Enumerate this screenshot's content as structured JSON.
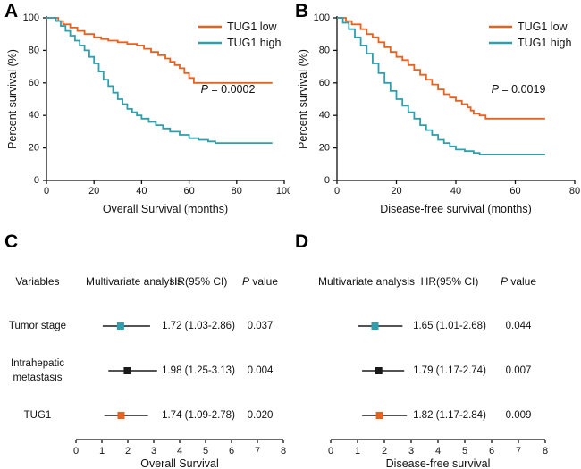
{
  "colors": {
    "tug1_low": "#E9611E",
    "tug1_high": "#2E9FAD",
    "black": "#1A1A1A",
    "axis": "#111111"
  },
  "chart_data": [
    {
      "id": "A",
      "type": "line",
      "subtype": "kaplan-meier-step",
      "xlabel": "Overall Survival (months)",
      "ylabel": "Percent survival (%)",
      "xlim": [
        0,
        100
      ],
      "ylim": [
        0,
        100
      ],
      "xticks": [
        0,
        20,
        40,
        60,
        80,
        100
      ],
      "yticks": [
        0,
        20,
        40,
        60,
        80,
        100
      ],
      "pvalue": "P = 0.0002",
      "legend_position": "top-right",
      "series": [
        {
          "name": "TUG1 low",
          "color": "#E9611E",
          "steps": [
            [
              0,
              100
            ],
            [
              5,
              98
            ],
            [
              7,
              96
            ],
            [
              10,
              94
            ],
            [
              13,
              92
            ],
            [
              16,
              90
            ],
            [
              20,
              88
            ],
            [
              23,
              87
            ],
            [
              26,
              86
            ],
            [
              30,
              85
            ],
            [
              34,
              84
            ],
            [
              38,
              83
            ],
            [
              41,
              81
            ],
            [
              44,
              79
            ],
            [
              47,
              77
            ],
            [
              50,
              75
            ],
            [
              52,
              73
            ],
            [
              54,
              71
            ],
            [
              56,
              69
            ],
            [
              58,
              66
            ],
            [
              60,
              63
            ],
            [
              62,
              60
            ],
            [
              95,
              60
            ]
          ]
        },
        {
          "name": "TUG1 high",
          "color": "#2E9FAD",
          "steps": [
            [
              0,
              100
            ],
            [
              4,
              98
            ],
            [
              6,
              95
            ],
            [
              8,
              92
            ],
            [
              10,
              89
            ],
            [
              12,
              86
            ],
            [
              14,
              83
            ],
            [
              16,
              80
            ],
            [
              18,
              76
            ],
            [
              20,
              72
            ],
            [
              22,
              67
            ],
            [
              24,
              62
            ],
            [
              26,
              58
            ],
            [
              28,
              54
            ],
            [
              30,
              50
            ],
            [
              32,
              47
            ],
            [
              34,
              44
            ],
            [
              36,
              42
            ],
            [
              38,
              40
            ],
            [
              40,
              38
            ],
            [
              43,
              36
            ],
            [
              46,
              34
            ],
            [
              49,
              32
            ],
            [
              52,
              30
            ],
            [
              56,
              28
            ],
            [
              60,
              26
            ],
            [
              64,
              25
            ],
            [
              68,
              24
            ],
            [
              71,
              23
            ],
            [
              95,
              23
            ]
          ]
        }
      ]
    },
    {
      "id": "B",
      "type": "line",
      "subtype": "kaplan-meier-step",
      "xlabel": "Disease-free survival (months)",
      "ylabel": "Percent survival (%)",
      "xlim": [
        0,
        80
      ],
      "ylim": [
        0,
        100
      ],
      "xticks": [
        0,
        20,
        40,
        60,
        80
      ],
      "yticks": [
        0,
        20,
        40,
        60,
        80,
        100
      ],
      "pvalue": "P = 0.0019",
      "legend_position": "top-right",
      "series": [
        {
          "name": "TUG1 low",
          "color": "#E9611E",
          "steps": [
            [
              0,
              100
            ],
            [
              3,
              98
            ],
            [
              5,
              96
            ],
            [
              8,
              93
            ],
            [
              10,
              90
            ],
            [
              12,
              88
            ],
            [
              14,
              85
            ],
            [
              16,
              82
            ],
            [
              18,
              79
            ],
            [
              20,
              76
            ],
            [
              22,
              74
            ],
            [
              24,
              71
            ],
            [
              26,
              68
            ],
            [
              28,
              65
            ],
            [
              30,
              62
            ],
            [
              32,
              59
            ],
            [
              34,
              56
            ],
            [
              36,
              53
            ],
            [
              38,
              51
            ],
            [
              40,
              49
            ],
            [
              42,
              47
            ],
            [
              44,
              45
            ],
            [
              45,
              43
            ],
            [
              46,
              41
            ],
            [
              48,
              40
            ],
            [
              50,
              38
            ],
            [
              70,
              38
            ]
          ]
        },
        {
          "name": "TUG1 high",
          "color": "#2E9FAD",
          "steps": [
            [
              0,
              100
            ],
            [
              2,
              97
            ],
            [
              4,
              93
            ],
            [
              6,
              88
            ],
            [
              8,
              83
            ],
            [
              10,
              78
            ],
            [
              12,
              72
            ],
            [
              14,
              66
            ],
            [
              16,
              60
            ],
            [
              18,
              55
            ],
            [
              20,
              50
            ],
            [
              22,
              46
            ],
            [
              24,
              42
            ],
            [
              26,
              38
            ],
            [
              28,
              34
            ],
            [
              30,
              31
            ],
            [
              32,
              28
            ],
            [
              34,
              25
            ],
            [
              36,
              23
            ],
            [
              38,
              21
            ],
            [
              40,
              19
            ],
            [
              43,
              18
            ],
            [
              46,
              17
            ],
            [
              48,
              16
            ],
            [
              70,
              16
            ]
          ]
        }
      ]
    },
    {
      "id": "C",
      "type": "scatter",
      "subtype": "forest",
      "headers": [
        "Variables",
        "Multivariate analysis",
        "HR(95% CI)",
        "P value"
      ],
      "xlabel": "Overall Survival",
      "xlim": [
        0,
        8
      ],
      "xticks": [
        0,
        1,
        2,
        3,
        4,
        5,
        6,
        7,
        8
      ],
      "rows": [
        {
          "variable": "Tumor stage",
          "hr": 1.72,
          "ci_low": 1.03,
          "ci_high": 2.86,
          "hr_label": "1.72 (1.03-2.86)",
          "p_label": "0.037",
          "color": "#2E9FAD"
        },
        {
          "variable": "Intrahepatic metastasis",
          "hr": 1.98,
          "ci_low": 1.25,
          "ci_high": 3.13,
          "hr_label": "1.98 (1.25-3.13)",
          "p_label": "0.004",
          "color": "#1A1A1A"
        },
        {
          "variable": "TUG1",
          "hr": 1.74,
          "ci_low": 1.09,
          "ci_high": 2.78,
          "hr_label": "1.74 (1.09-2.78)",
          "p_label": "0.020",
          "color": "#E9611E"
        }
      ]
    },
    {
      "id": "D",
      "type": "scatter",
      "subtype": "forest",
      "headers": [
        "Multivariate analysis",
        "HR(95% CI)",
        "P value"
      ],
      "xlabel": "Disease-free survival",
      "xlim": [
        0,
        8
      ],
      "xticks": [
        0,
        1,
        2,
        3,
        4,
        5,
        6,
        7,
        8
      ],
      "rows": [
        {
          "variable": "Tumor stage",
          "hr": 1.65,
          "ci_low": 1.01,
          "ci_high": 2.68,
          "hr_label": "1.65 (1.01-2.68)",
          "p_label": "0.044",
          "color": "#2E9FAD"
        },
        {
          "variable": "Intrahepatic metastasis",
          "hr": 1.79,
          "ci_low": 1.17,
          "ci_high": 2.74,
          "hr_label": "1.79 (1.17-2.74)",
          "p_label": "0.007",
          "color": "#1A1A1A"
        },
        {
          "variable": "TUG1",
          "hr": 1.82,
          "ci_low": 1.17,
          "ci_high": 2.84,
          "hr_label": "1.82 (1.17-2.84)",
          "p_label": "0.009",
          "color": "#E9611E"
        }
      ]
    }
  ]
}
